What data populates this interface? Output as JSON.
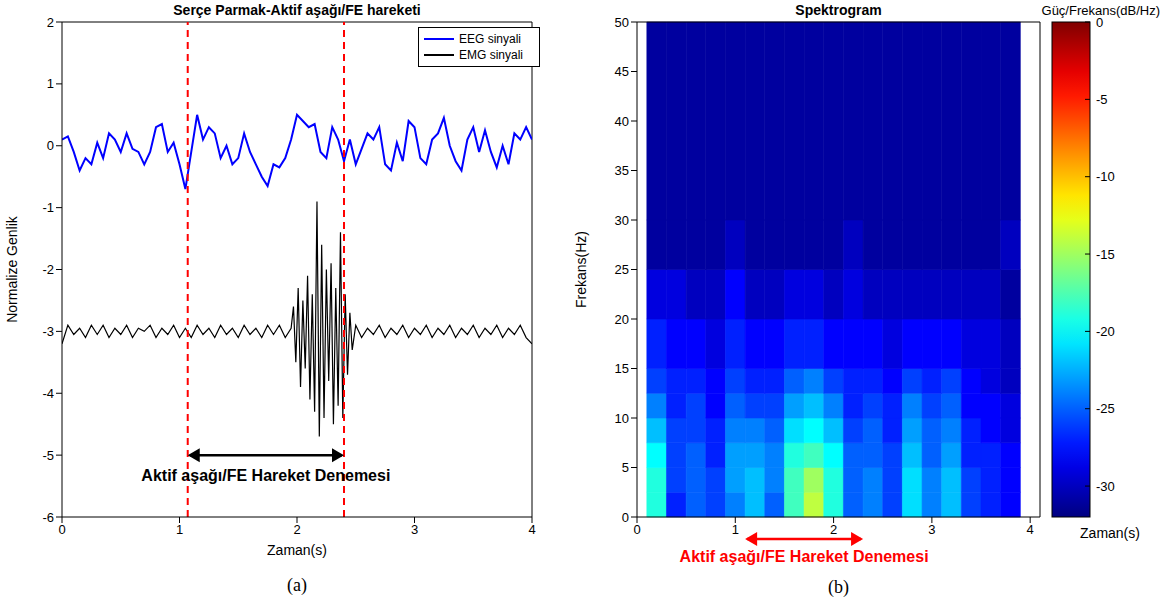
{
  "chart_data": [
    {
      "type": "line",
      "panel": "(a)",
      "title": "Serçe Parmak-Aktif aşağı/FE hareketi",
      "x_label": "Zaman(s)",
      "y_label": "Normalize Genlik",
      "xlim": [
        0,
        4
      ],
      "ylim": [
        -6,
        2
      ],
      "xticks": [
        0,
        1,
        2,
        3,
        4
      ],
      "yticks": [
        -6,
        -5,
        -4,
        -3,
        -2,
        -1,
        0,
        1,
        2
      ],
      "legend": "upper right",
      "series": [
        {
          "name": "EEG sinyali",
          "color": "#0000ff",
          "x": [
            0,
            0.05,
            0.1,
            0.15,
            0.2,
            0.25,
            0.3,
            0.35,
            0.4,
            0.45,
            0.5,
            0.55,
            0.6,
            0.65,
            0.7,
            0.75,
            0.8,
            0.85,
            0.9,
            0.95,
            1.0,
            1.05,
            1.1,
            1.15,
            1.2,
            1.25,
            1.3,
            1.35,
            1.4,
            1.45,
            1.5,
            1.55,
            1.6,
            1.65,
            1.7,
            1.75,
            1.8,
            1.85,
            1.9,
            1.95,
            2.0,
            2.05,
            2.1,
            2.15,
            2.2,
            2.25,
            2.3,
            2.35,
            2.4,
            2.45,
            2.5,
            2.55,
            2.6,
            2.65,
            2.7,
            2.75,
            2.8,
            2.85,
            2.9,
            2.95,
            3.0,
            3.05,
            3.1,
            3.15,
            3.2,
            3.25,
            3.3,
            3.35,
            3.4,
            3.45,
            3.5,
            3.55,
            3.6,
            3.65,
            3.7,
            3.75,
            3.8,
            3.85,
            3.9,
            3.95,
            4.0
          ],
          "values": [
            0.1,
            0.15,
            -0.1,
            -0.4,
            -0.2,
            -0.3,
            0.05,
            -0.2,
            0.2,
            0.1,
            -0.1,
            0.2,
            -0.05,
            -0.1,
            -0.3,
            -0.1,
            0.3,
            0.35,
            -0.1,
            0.05,
            -0.3,
            -0.7,
            -0.1,
            0.5,
            0.1,
            0.3,
            0.2,
            -0.2,
            0.0,
            -0.3,
            -0.2,
            0.2,
            -0.1,
            -0.3,
            -0.5,
            -0.65,
            -0.3,
            -0.35,
            -0.2,
            0.1,
            0.5,
            0.4,
            0.3,
            0.35,
            -0.1,
            -0.2,
            0.3,
            0.1,
            -0.25,
            0.1,
            -0.3,
            -0.05,
            0.2,
            0.1,
            0.3,
            -0.3,
            -0.4,
            0.05,
            -0.25,
            0.4,
            0.3,
            -0.2,
            -0.3,
            0.1,
            0.2,
            0.45,
            0.0,
            -0.25,
            -0.4,
            0.1,
            0.3,
            -0.1,
            0.25,
            -0.1,
            -0.35,
            0.0,
            -0.3,
            0.2,
            0.1,
            0.3,
            0.1
          ]
        },
        {
          "name": "EMG sinyali",
          "color": "#000000",
          "x": [
            0,
            0.05,
            0.1,
            0.15,
            0.2,
            0.25,
            0.3,
            0.35,
            0.4,
            0.45,
            0.5,
            0.55,
            0.6,
            0.65,
            0.7,
            0.75,
            0.8,
            0.85,
            0.9,
            0.95,
            1.0,
            1.05,
            1.1,
            1.15,
            1.2,
            1.25,
            1.3,
            1.35,
            1.4,
            1.45,
            1.5,
            1.55,
            1.6,
            1.65,
            1.7,
            1.75,
            1.8,
            1.85,
            1.9,
            1.95,
            1.97,
            1.99,
            2.01,
            2.03,
            2.05,
            2.07,
            2.09,
            2.11,
            2.13,
            2.15,
            2.17,
            2.19,
            2.21,
            2.23,
            2.25,
            2.27,
            2.29,
            2.31,
            2.33,
            2.35,
            2.37,
            2.39,
            2.41,
            2.43,
            2.45,
            2.47,
            2.5,
            2.55,
            2.6,
            2.65,
            2.7,
            2.75,
            2.8,
            2.85,
            2.9,
            2.95,
            3.0,
            3.05,
            3.1,
            3.15,
            3.2,
            3.25,
            3.3,
            3.35,
            3.4,
            3.45,
            3.5,
            3.55,
            3.6,
            3.65,
            3.7,
            3.75,
            3.8,
            3.85,
            3.9,
            3.95,
            4.0
          ],
          "values": [
            -3.2,
            -2.9,
            -3.05,
            -2.95,
            -3.1,
            -2.9,
            -3.05,
            -2.9,
            -3.1,
            -2.95,
            -3.05,
            -2.9,
            -3.1,
            -2.95,
            -3.0,
            -2.9,
            -3.1,
            -2.95,
            -3.05,
            -2.9,
            -3.1,
            -2.95,
            -3.1,
            -2.9,
            -3.05,
            -2.95,
            -3.1,
            -2.9,
            -3.05,
            -2.95,
            -3.1,
            -2.9,
            -3.05,
            -2.95,
            -3.1,
            -2.9,
            -3.05,
            -2.9,
            -3.1,
            -2.95,
            -2.6,
            -3.5,
            -2.3,
            -3.9,
            -2.5,
            -3.6,
            -2.1,
            -4.1,
            -2.4,
            -4.3,
            -0.9,
            -4.7,
            -1.6,
            -4.4,
            -2.0,
            -3.8,
            -1.9,
            -4.5,
            -2.3,
            -4.2,
            -1.4,
            -4.4,
            -2.4,
            -3.7,
            -2.7,
            -3.3,
            -2.9,
            -3.1,
            -2.95,
            -3.05,
            -2.9,
            -3.1,
            -2.95,
            -3.05,
            -2.9,
            -3.1,
            -2.95,
            -3.05,
            -2.9,
            -3.1,
            -2.95,
            -3.05,
            -2.9,
            -3.1,
            -2.95,
            -3.05,
            -2.9,
            -3.1,
            -2.95,
            -3.05,
            -2.9,
            -3.1,
            -2.95,
            -3.05,
            -2.9,
            -3.1,
            -3.2
          ]
        }
      ],
      "annotations": [
        {
          "type": "vline",
          "x": 1.07,
          "color": "#ff0000",
          "line_style": "dashed"
        },
        {
          "type": "vline",
          "x": 2.4,
          "color": "#ff0000",
          "line_style": "dashed"
        },
        {
          "type": "arrow",
          "x": [
            1.07,
            2.4
          ],
          "y": -5,
          "color": "#000000",
          "text": "Aktif aşağı/FE Hareket Denemesi"
        }
      ]
    },
    {
      "type": "heatmap",
      "panel": "(b)",
      "title": "Spektrogram",
      "x_label": "Zaman(s)",
      "y_label": "Frekans(Hz)",
      "xlim": [
        0,
        4.1
      ],
      "ylim": [
        0,
        50
      ],
      "xticks": [
        0,
        1,
        2,
        3,
        4
      ],
      "yticks": [
        0,
        5,
        10,
        15,
        20,
        25,
        30,
        35,
        40,
        45,
        50
      ],
      "time_edges": [
        0.1,
        0.3,
        0.5,
        0.7,
        0.9,
        1.1,
        1.3,
        1.5,
        1.7,
        1.9,
        2.1,
        2.3,
        2.5,
        2.7,
        2.9,
        3.1,
        3.3,
        3.5,
        3.7,
        3.9
      ],
      "frequency_edges": [
        0,
        2.5,
        5,
        7.5,
        10,
        12.5,
        15,
        20,
        25,
        30,
        50
      ],
      "cells": [
        [
          -19,
          -27,
          -25,
          -26,
          -24,
          -22,
          -25,
          -18,
          -14,
          -19,
          -25,
          -24,
          -26,
          -21,
          -24,
          -22,
          -26,
          -27,
          -28
        ],
        [
          -19,
          -26,
          -25,
          -26,
          -23,
          -22,
          -24,
          -18,
          -15,
          -19,
          -25,
          -24,
          -26,
          -21,
          -24,
          -22,
          -26,
          -27,
          -28
        ],
        [
          -20,
          -26,
          -25,
          -27,
          -23,
          -23,
          -24,
          -19,
          -18,
          -20,
          -25,
          -25,
          -26,
          -22,
          -25,
          -23,
          -27,
          -27,
          -28
        ],
        [
          -22,
          -26,
          -26,
          -27,
          -24,
          -24,
          -25,
          -21,
          -20,
          -22,
          -26,
          -25,
          -27,
          -23,
          -25,
          -24,
          -27,
          -28,
          -29
        ],
        [
          -24,
          -27,
          -26,
          -28,
          -25,
          -26,
          -26,
          -23,
          -22,
          -24,
          -27,
          -26,
          -27,
          -24,
          -26,
          -25,
          -28,
          -28,
          -29
        ],
        [
          -26,
          -27,
          -27,
          -28,
          -26,
          -27,
          -27,
          -25,
          -24,
          -26,
          -27,
          -27,
          -28,
          -26,
          -27,
          -26,
          -28,
          -29,
          -30
        ],
        [
          -27,
          -28,
          -28,
          -29,
          -27,
          -28,
          -28,
          -27,
          -27,
          -28,
          -28,
          -28,
          -29,
          -28,
          -28,
          -28,
          -29,
          -29,
          -30
        ],
        [
          -29,
          -29,
          -30,
          -30,
          -28,
          -30,
          -30,
          -29,
          -29,
          -30,
          -29,
          -30,
          -30,
          -30,
          -30,
          -30,
          -30,
          -30,
          -31
        ],
        [
          -31,
          -31,
          -31,
          -31,
          -30,
          -31,
          -31,
          -31,
          -31,
          -31,
          -30,
          -31,
          -31,
          -31,
          -31,
          -31,
          -31,
          -31,
          -30
        ],
        [
          -31,
          -31,
          -31,
          -31,
          -31,
          -31,
          -31,
          -31,
          -31,
          -31,
          -31,
          -31,
          -31,
          -31,
          -31,
          -31,
          -31,
          -31,
          -31
        ]
      ],
      "colorbar": {
        "label": "Güç/Frekans(dB/Hz)",
        "range": [
          -32,
          0
        ],
        "ticks": [
          0,
          -5,
          -10,
          -15,
          -20,
          -25,
          -30
        ]
      },
      "annotations": [
        {
          "type": "arrow",
          "x": [
            1.1,
            2.3
          ],
          "color": "#ff0000",
          "text": "Aktif aşağı/FE Hareket Denemesi"
        }
      ]
    }
  ]
}
